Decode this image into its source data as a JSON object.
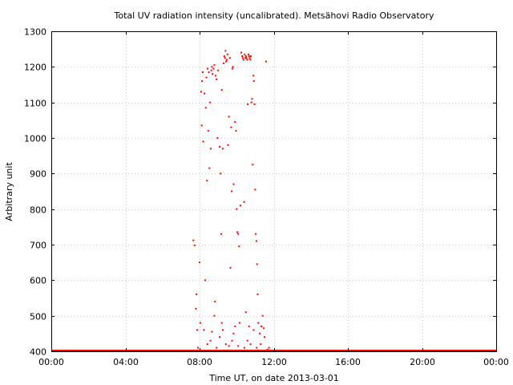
{
  "chart_data": {
    "type": "scatter",
    "title": "Total UV radiation intensity (uncalibrated). Metsähovi Radio Observatory",
    "xlabel": "Time UT, on date 2013-03-01",
    "ylabel": "Arbitrary unit",
    "xlim": [
      "00:00",
      "24:00"
    ],
    "ylim": [
      400,
      1300
    ],
    "x_ticks": [
      "00:00",
      "04:00",
      "08:00",
      "12:00",
      "16:00",
      "20:00",
      "00:00"
    ],
    "y_ticks": [
      "1300",
      "1200",
      "1100",
      "1000",
      "900",
      "800",
      "700",
      "600",
      "500",
      "400"
    ],
    "grid": true,
    "marker_color": "#ff0000",
    "baseline": {
      "value": 400,
      "x_from": "00:00",
      "x_to": "24:00"
    },
    "points": [
      [
        "07:40",
        712
      ],
      [
        "07:44",
        698
      ],
      [
        "07:48",
        520
      ],
      [
        "07:50",
        560
      ],
      [
        "07:52",
        460
      ],
      [
        "07:55",
        410
      ],
      [
        "08:00",
        650
      ],
      [
        "08:02",
        480
      ],
      [
        "08:05",
        1130
      ],
      [
        "08:07",
        1035
      ],
      [
        "08:08",
        1160
      ],
      [
        "08:10",
        1185
      ],
      [
        "08:12",
        990
      ],
      [
        "08:14",
        460
      ],
      [
        "08:16",
        1125
      ],
      [
        "08:18",
        600
      ],
      [
        "08:20",
        1085
      ],
      [
        "08:22",
        1170
      ],
      [
        "08:24",
        880
      ],
      [
        "08:26",
        1195
      ],
      [
        "08:28",
        1020
      ],
      [
        "08:30",
        1185
      ],
      [
        "08:32",
        915
      ],
      [
        "08:34",
        1100
      ],
      [
        "08:36",
        970
      ],
      [
        "08:38",
        1190
      ],
      [
        "08:40",
        1200
      ],
      [
        "08:42",
        1180
      ],
      [
        "08:45",
        1195
      ],
      [
        "08:48",
        1205
      ],
      [
        "08:50",
        540
      ],
      [
        "08:52",
        1175
      ],
      [
        "08:55",
        1165
      ],
      [
        "08:58",
        1000
      ],
      [
        "09:00",
        1190
      ],
      [
        "09:05",
        975
      ],
      [
        "09:08",
        900
      ],
      [
        "09:10",
        730
      ],
      [
        "09:12",
        1135
      ],
      [
        "09:15",
        970
      ],
      [
        "09:18",
        1210
      ],
      [
        "09:20",
        1230
      ],
      [
        "09:22",
        1225
      ],
      [
        "09:24",
        1245
      ],
      [
        "09:26",
        1215
      ],
      [
        "09:28",
        1220
      ],
      [
        "09:30",
        1235
      ],
      [
        "09:32",
        980
      ],
      [
        "09:35",
        1060
      ],
      [
        "09:38",
        1225
      ],
      [
        "09:40",
        635
      ],
      [
        "09:42",
        1030
      ],
      [
        "09:44",
        850
      ],
      [
        "09:46",
        1195
      ],
      [
        "09:48",
        1200
      ],
      [
        "09:50",
        870
      ],
      [
        "09:55",
        1045
      ],
      [
        "09:58",
        1020
      ],
      [
        "10:00",
        800
      ],
      [
        "10:02",
        735
      ],
      [
        "10:05",
        730
      ],
      [
        "10:08",
        695
      ],
      [
        "10:10",
        480
      ],
      [
        "10:12",
        810
      ],
      [
        "10:15",
        1240
      ],
      [
        "10:18",
        1230
      ],
      [
        "10:20",
        1225
      ],
      [
        "10:22",
        1220
      ],
      [
        "10:24",
        820
      ],
      [
        "10:26",
        1235
      ],
      [
        "10:28",
        1225
      ],
      [
        "10:30",
        1230
      ],
      [
        "10:32",
        1225
      ],
      [
        "10:34",
        1220
      ],
      [
        "10:36",
        1095
      ],
      [
        "10:38",
        1235
      ],
      [
        "10:40",
        1230
      ],
      [
        "10:42",
        1225
      ],
      [
        "10:44",
        1220
      ],
      [
        "10:46",
        1230
      ],
      [
        "10:48",
        1100
      ],
      [
        "10:50",
        1110
      ],
      [
        "10:52",
        925
      ],
      [
        "10:54",
        1175
      ],
      [
        "10:56",
        1160
      ],
      [
        "10:58",
        1095
      ],
      [
        "11:00",
        855
      ],
      [
        "11:02",
        730
      ],
      [
        "11:04",
        710
      ],
      [
        "11:06",
        645
      ],
      [
        "11:08",
        560
      ],
      [
        "11:10",
        480
      ],
      [
        "11:15",
        450
      ],
      [
        "11:20",
        470
      ],
      [
        "11:24",
        500
      ],
      [
        "11:28",
        465
      ],
      [
        "11:30",
        440
      ],
      [
        "11:35",
        1215
      ],
      [
        "08:25",
        420
      ],
      [
        "08:35",
        430
      ],
      [
        "08:55",
        410
      ],
      [
        "09:05",
        440
      ],
      [
        "09:15",
        460
      ],
      [
        "09:25",
        420
      ],
      [
        "09:35",
        415
      ],
      [
        "09:45",
        430
      ],
      [
        "09:55",
        470
      ],
      [
        "10:05",
        415
      ],
      [
        "10:25",
        410
      ],
      [
        "10:35",
        430
      ],
      [
        "10:45",
        420
      ],
      [
        "10:55",
        460
      ],
      [
        "11:05",
        410
      ],
      [
        "11:18",
        420
      ],
      [
        "11:40",
        405
      ],
      [
        "11:45",
        410
      ],
      [
        "08:40",
        455
      ],
      [
        "08:48",
        500
      ],
      [
        "09:12",
        480
      ],
      [
        "09:50",
        450
      ],
      [
        "10:30",
        510
      ],
      [
        "10:40",
        470
      ]
    ]
  }
}
